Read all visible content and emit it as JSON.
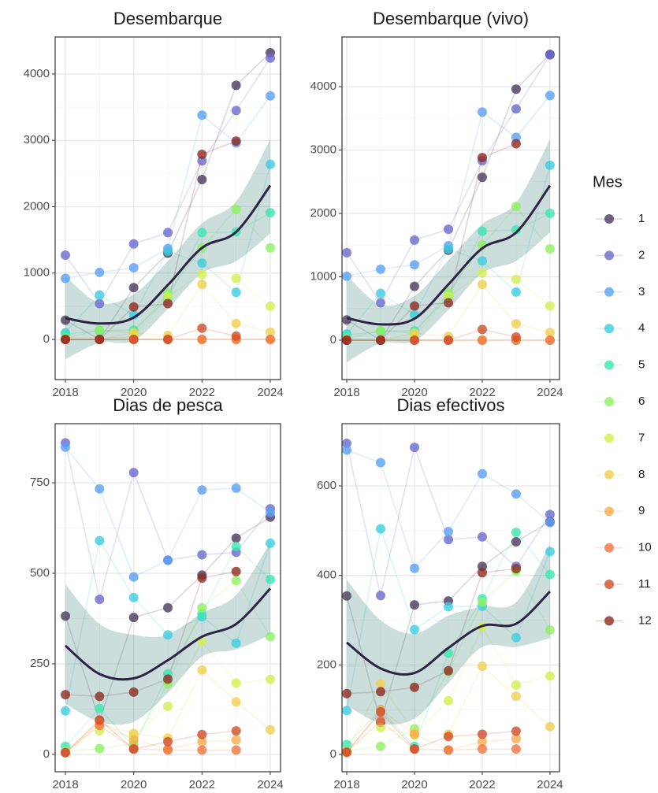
{
  "legend_title": "Mes",
  "chart_data": [
    {
      "type": "line",
      "title": "Desembarque",
      "x": [
        2018,
        2019,
        2020,
        2021,
        2022,
        2023,
        2024
      ],
      "xlim": [
        2017.7,
        2024.3
      ],
      "xticks": [
        2018,
        2020,
        2022,
        2024
      ],
      "ylim": [
        -605,
        4558
      ],
      "yticks": [
        0,
        1000,
        2000,
        3000,
        4000
      ],
      "grid": true,
      "series": [
        {
          "name": "1",
          "color": "#4b3b5e",
          "values": [
            290,
            0,
            780,
            1300,
            2410,
            3830,
            4320
          ]
        },
        {
          "name": "2",
          "color": "#6a6ad0",
          "values": [
            1270,
            540,
            1440,
            1610,
            2690,
            3450,
            4240
          ]
        },
        {
          "name": "3",
          "color": "#5aa0f5",
          "values": [
            920,
            1010,
            1080,
            1370,
            3380,
            2960,
            3670
          ]
        },
        {
          "name": "4",
          "color": "#3ccde0",
          "values": [
            100,
            670,
            370,
            1330,
            1150,
            710,
            2640
          ]
        },
        {
          "name": "5",
          "color": "#3ce6b0",
          "values": [
            80,
            130,
            140,
            620,
            1610,
            1620,
            1910
          ]
        },
        {
          "name": "6",
          "color": "#8ff060",
          "values": [
            20,
            140,
            100,
            700,
            1380,
            1960,
            1380
          ]
        },
        {
          "name": "7",
          "color": "#d2ef50",
          "values": [
            0,
            0,
            50,
            640,
            980,
            920,
            500
          ]
        },
        {
          "name": "8",
          "color": "#f0d050",
          "values": [
            0,
            0,
            100,
            60,
            830,
            240,
            110
          ]
        },
        {
          "name": "9",
          "color": "#f9ad50",
          "values": [
            0,
            0,
            0,
            0,
            0,
            0,
            0
          ]
        },
        {
          "name": "10",
          "color": "#f07540",
          "values": [
            0,
            0,
            0,
            0,
            0,
            0,
            0
          ]
        },
        {
          "name": "11",
          "color": "#cf4e2a",
          "values": [
            0,
            0,
            0,
            0,
            170,
            50,
            null
          ]
        },
        {
          "name": "12",
          "color": "#8e2a22",
          "values": [
            0,
            0,
            490,
            540,
            2790,
            2990,
            null
          ]
        }
      ],
      "trend": {
        "color": "#2e2347",
        "fill": "#2f7a72",
        "values": [
          320,
          240,
          330,
          820,
          1380,
          1620,
          2320
        ],
        "lower": [
          -300,
          -50,
          -20,
          460,
          1000,
          1180,
          1600
        ],
        "upper": [
          950,
          550,
          680,
          1180,
          1750,
          2080,
          3020
        ]
      }
    },
    {
      "type": "line",
      "title": "Desembarque (vivo)",
      "x": [
        2018,
        2019,
        2020,
        2021,
        2022,
        2023,
        2024
      ],
      "xlim": [
        2017.86,
        2024.28
      ],
      "xticks": [
        2018,
        2020,
        2022,
        2024
      ],
      "ylim": [
        -621,
        4783
      ],
      "yticks": [
        0,
        1000,
        2000,
        3000,
        4000
      ],
      "grid": true,
      "series": [
        {
          "name": "1",
          "color": "#4b3b5e",
          "values": [
            320,
            0,
            850,
            1420,
            2570,
            3960,
            4510
          ]
        },
        {
          "name": "2",
          "color": "#6a6ad0",
          "values": [
            1380,
            590,
            1580,
            1750,
            2830,
            3650,
            4500
          ]
        },
        {
          "name": "3",
          "color": "#5aa0f5",
          "values": [
            1010,
            1120,
            1190,
            1490,
            3600,
            3200,
            3860
          ]
        },
        {
          "name": "4",
          "color": "#3ccde0",
          "values": [
            100,
            740,
            400,
            1440,
            1250,
            760,
            2760
          ]
        },
        {
          "name": "5",
          "color": "#3ce6b0",
          "values": [
            80,
            140,
            150,
            680,
            1720,
            1740,
            2000
          ]
        },
        {
          "name": "6",
          "color": "#8ff060",
          "values": [
            20,
            150,
            110,
            750,
            1500,
            2110,
            1440
          ]
        },
        {
          "name": "7",
          "color": "#d2ef50",
          "values": [
            0,
            0,
            60,
            690,
            1060,
            960,
            540
          ]
        },
        {
          "name": "8",
          "color": "#f0d050",
          "values": [
            0,
            0,
            110,
            60,
            880,
            260,
            120
          ]
        },
        {
          "name": "9",
          "color": "#f9ad50",
          "values": [
            0,
            0,
            0,
            0,
            0,
            0,
            0
          ]
        },
        {
          "name": "10",
          "color": "#f07540",
          "values": [
            0,
            0,
            0,
            0,
            0,
            0,
            0
          ]
        },
        {
          "name": "11",
          "color": "#cf4e2a",
          "values": [
            0,
            0,
            0,
            0,
            170,
            50,
            null
          ]
        },
        {
          "name": "12",
          "color": "#8e2a22",
          "values": [
            0,
            0,
            540,
            590,
            2880,
            3100,
            null
          ]
        }
      ],
      "trend": {
        "color": "#2e2347",
        "fill": "#2f7a72",
        "values": [
          350,
          250,
          340,
          880,
          1450,
          1700,
          2440
        ],
        "lower": [
          -350,
          -50,
          -10,
          480,
          1060,
          1250,
          1700
        ],
        "upper": [
          1020,
          560,
          700,
          1260,
          1830,
          2170,
          3170
        ]
      }
    },
    {
      "type": "line",
      "title": "Dias de pesca",
      "x": [
        2018,
        2019,
        2020,
        2021,
        2022,
        2023,
        2024
      ],
      "xlim": [
        2017.7,
        2024.3
      ],
      "xticks": [
        2018,
        2020,
        2022,
        2024
      ],
      "ylim": [
        -47.8,
        913
      ],
      "yticks": [
        0,
        250,
        500,
        750
      ],
      "grid": true,
      "series": [
        {
          "name": "1",
          "color": "#4b3b5e",
          "values": [
            382,
            93,
            378,
            405,
            495,
            597,
            655
          ]
        },
        {
          "name": "2",
          "color": "#6a6ad0",
          "values": [
            860,
            428,
            778,
            536,
            551,
            558,
            678
          ]
        },
        {
          "name": "3",
          "color": "#5aa0f5",
          "values": [
            848,
            733,
            490,
            536,
            730,
            735,
            668
          ]
        },
        {
          "name": "4",
          "color": "#3ccde0",
          "values": [
            120,
            590,
            433,
            330,
            380,
            307,
            583
          ]
        },
        {
          "name": "5",
          "color": "#3ce6b0",
          "values": [
            22,
            127,
            20,
            222,
            388,
            574,
            483
          ]
        },
        {
          "name": "6",
          "color": "#8ff060",
          "values": [
            8,
            16,
            30,
            195,
            405,
            480,
            325
          ]
        },
        {
          "name": "7",
          "color": "#d2ef50",
          "values": [
            5,
            65,
            50,
            133,
            312,
            197,
            207
          ]
        },
        {
          "name": "8",
          "color": "#f0d050",
          "values": [
            5,
            85,
            58,
            45,
            233,
            145,
            68
          ]
        },
        {
          "name": "9",
          "color": "#f9ad50",
          "values": [
            5,
            90,
            40,
            15,
            35,
            40,
            null
          ]
        },
        {
          "name": "10",
          "color": "#f07540",
          "values": [
            5,
            80,
            15,
            12,
            12,
            12,
            null
          ]
        },
        {
          "name": "11",
          "color": "#cf4e2a",
          "values": [
            5,
            95,
            15,
            35,
            55,
            65,
            null
          ]
        },
        {
          "name": "12",
          "color": "#8e2a22",
          "values": [
            165,
            160,
            172,
            208,
            487,
            505,
            null
          ]
        }
      ],
      "trend": {
        "color": "#2e2347",
        "fill": "#2f7a72",
        "values": [
          300,
          222,
          210,
          260,
          325,
          360,
          458
        ],
        "lower": [
          140,
          90,
          90,
          170,
          270,
          290,
          330
        ],
        "upper": [
          470,
          360,
          330,
          330,
          390,
          440,
          585
        ]
      }
    },
    {
      "type": "line",
      "title": "Dias efectivos",
      "x": [
        2018,
        2019,
        2020,
        2021,
        2022,
        2023,
        2024
      ],
      "xlim": [
        2017.86,
        2024.28
      ],
      "xticks": [
        2018,
        2020,
        2022,
        2024
      ],
      "ylim": [
        -38.7,
        739
      ],
      "yticks": [
        0,
        200,
        400,
        600
      ],
      "grid": true,
      "series": [
        {
          "name": "1",
          "color": "#4b3b5e",
          "values": [
            354,
            72,
            334,
            343,
            420,
            475,
            520
          ]
        },
        {
          "name": "2",
          "color": "#6a6ad0",
          "values": [
            695,
            355,
            686,
            480,
            486,
            420,
            536
          ]
        },
        {
          "name": "3",
          "color": "#5aa0f5",
          "values": [
            680,
            652,
            416,
            498,
            627,
            582,
            518
          ]
        },
        {
          "name": "4",
          "color": "#3ccde0",
          "values": [
            98,
            504,
            279,
            330,
            331,
            261,
            453
          ]
        },
        {
          "name": "5",
          "color": "#3ce6b0",
          "values": [
            22,
            100,
            18,
            226,
            348,
            496,
            402
          ]
        },
        {
          "name": "6",
          "color": "#8ff060",
          "values": [
            8,
            18,
            57,
            185,
            340,
            410,
            278
          ]
        },
        {
          "name": "7",
          "color": "#d2ef50",
          "values": [
            5,
            60,
            43,
            120,
            285,
            155,
            175
          ]
        },
        {
          "name": "8",
          "color": "#f0d050",
          "values": [
            5,
            158,
            48,
            45,
            197,
            130,
            62
          ]
        },
        {
          "name": "9",
          "color": "#f9ad50",
          "values": [
            5,
            100,
            45,
            10,
            28,
            35,
            null
          ]
        },
        {
          "name": "10",
          "color": "#f07540",
          "values": [
            5,
            75,
            12,
            10,
            12,
            12,
            null
          ]
        },
        {
          "name": "11",
          "color": "#cf4e2a",
          "values": [
            5,
            95,
            12,
            40,
            45,
            52,
            null
          ]
        },
        {
          "name": "12",
          "color": "#8e2a22",
          "values": [
            136,
            140,
            150,
            187,
            406,
            415,
            null
          ]
        }
      ],
      "trend": {
        "color": "#2e2347",
        "fill": "#2f7a72",
        "values": [
          250,
          192,
          182,
          238,
          287,
          292,
          364
        ],
        "lower": [
          110,
          70,
          80,
          160,
          240,
          240,
          260
        ],
        "upper": [
          390,
          300,
          270,
          310,
          330,
          340,
          470
        ]
      }
    }
  ]
}
